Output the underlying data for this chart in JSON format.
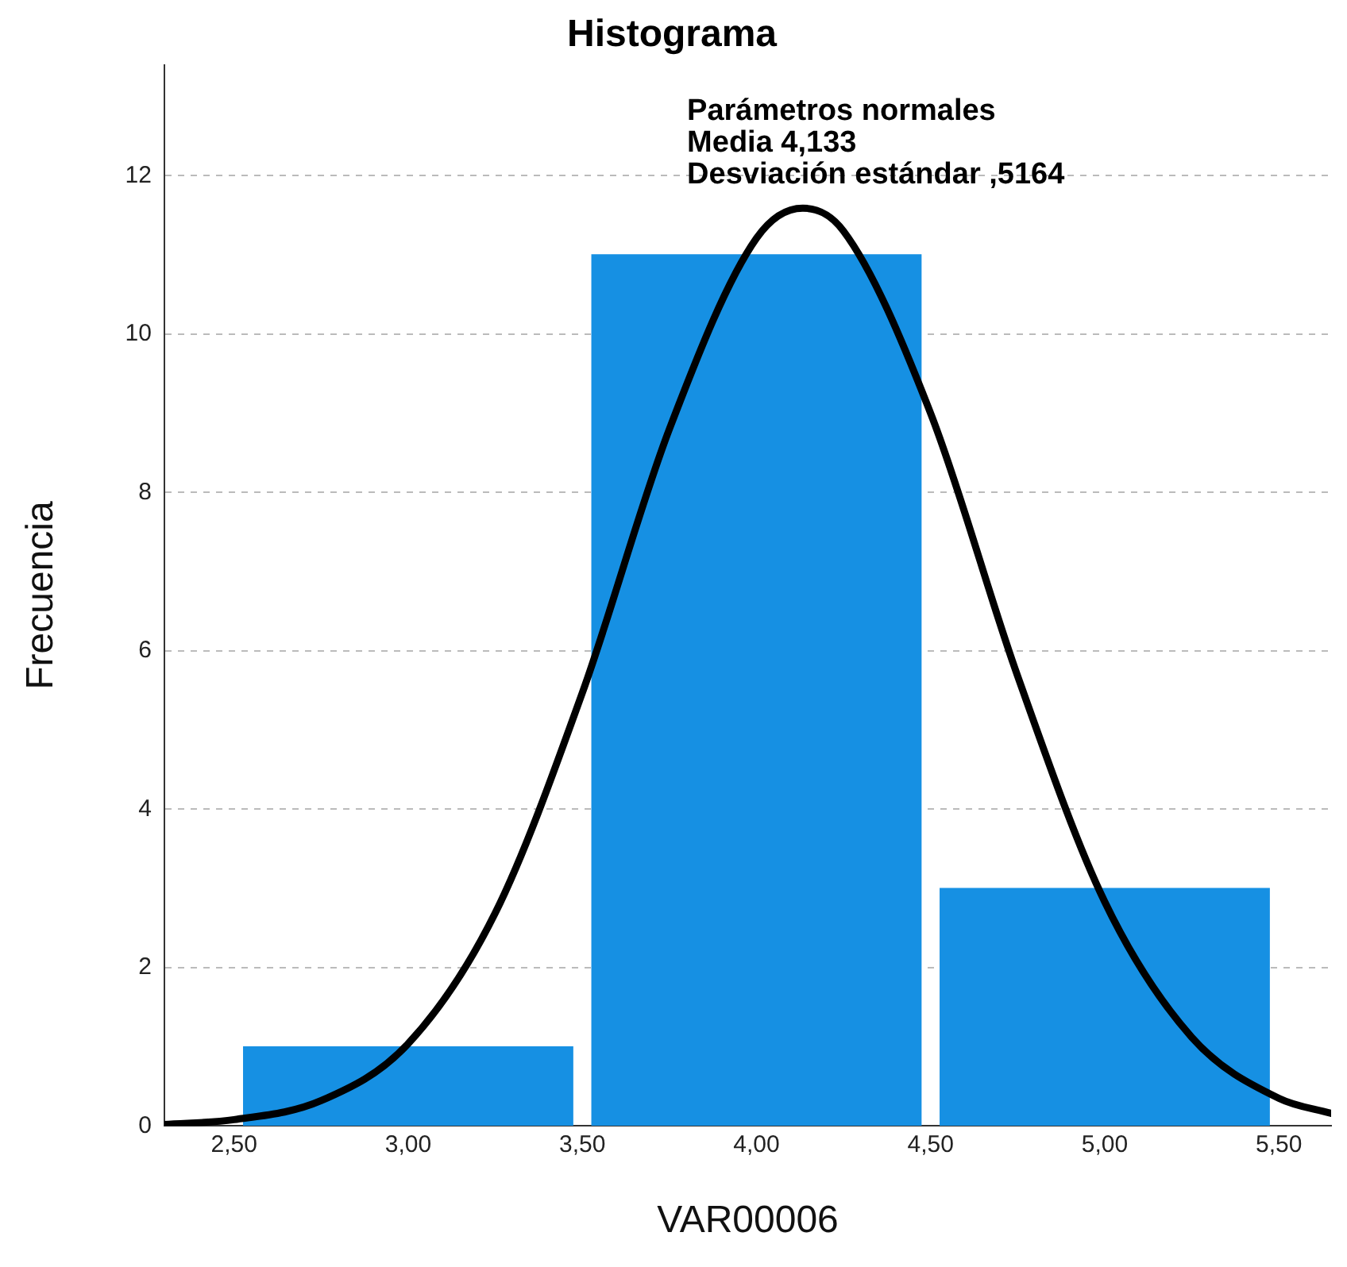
{
  "chart_data": {
    "type": "histogram",
    "title": "Histograma",
    "xlabel": "VAR00006",
    "ylabel": "Frecuencia",
    "bins": [
      2.5,
      3.5,
      4.5,
      5.5
    ],
    "values": [
      1,
      11,
      3
    ],
    "color": "#1690e3",
    "series": [
      {
        "type": "line",
        "color": "#000000",
        "x": [
          2.3,
          2.5,
          2.75,
          3.0,
          3.25,
          3.5,
          3.75,
          4.0,
          4.133,
          4.25,
          4.5,
          4.75,
          5.0,
          5.25,
          5.5,
          5.65
        ],
        "values": [
          0.02,
          0.08,
          0.32,
          1.04,
          2.69,
          5.47,
          8.8,
          11.21,
          11.59,
          11.3,
          9.0,
          5.68,
          2.83,
          1.12,
          0.35,
          0.16
        ]
      }
    ],
    "annotations": [
      "Parámetros normales",
      "Media 4,133",
      "Desviación estándar ,5164"
    ],
    "xlim": [
      2.3,
      5.65
    ],
    "ylim": [
      0,
      13.4
    ],
    "xticks": [
      {
        "value": 2.5,
        "label": "2,50"
      },
      {
        "value": 3.0,
        "label": "3,00"
      },
      {
        "value": 3.5,
        "label": "3,50"
      },
      {
        "value": 4.0,
        "label": "4,00"
      },
      {
        "value": 4.5,
        "label": "4,50"
      },
      {
        "value": 5.0,
        "label": "5,00"
      },
      {
        "value": 5.5,
        "label": "5,50"
      }
    ],
    "yticks": [
      0,
      2,
      4,
      6,
      8,
      10,
      12
    ],
    "grid": "y",
    "legend": false,
    "marker": "none",
    "line_style": "solid"
  }
}
